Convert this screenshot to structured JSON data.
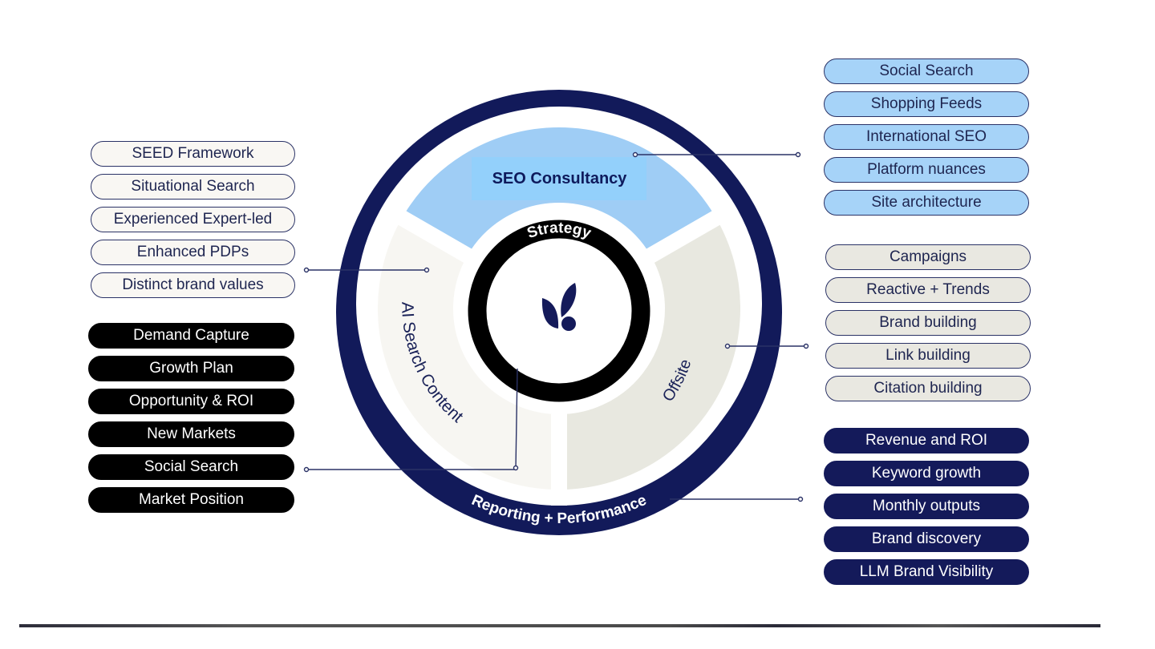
{
  "wheel": {
    "center_label": "Strategy",
    "outer_ring_label": "Reporting + Performance",
    "segments": [
      {
        "label": "SEO Consultancy",
        "color": "#9fcdf5"
      },
      {
        "label": "Offsite",
        "color": "#e8e8e0"
      },
      {
        "label": "AI Search Content",
        "color": "#f7f6f2"
      }
    ],
    "ring_color": "#121a5a",
    "center_ring_color": "#000000",
    "logo": "leaf-logo-icon"
  },
  "left_light": [
    "SEED Framework",
    "Situational Search",
    "Experienced Expert-led",
    "Enhanced PDPs",
    "Distinct brand values"
  ],
  "left_black": [
    "Demand Capture",
    "Growth Plan",
    "Opportunity & ROI",
    "New Markets",
    "Social Search",
    "Market Position"
  ],
  "right_blue": [
    "Social Search",
    "Shopping Feeds",
    "International SEO",
    "Platform nuances",
    "Site architecture"
  ],
  "right_gray": [
    "Campaigns",
    "Reactive + Trends",
    "Brand building",
    "Link building",
    "Citation building"
  ],
  "right_navy": [
    "Revenue and ROI",
    "Keyword growth",
    "Monthly outputs",
    "Brand discovery",
    "LLM Brand Visibility"
  ]
}
